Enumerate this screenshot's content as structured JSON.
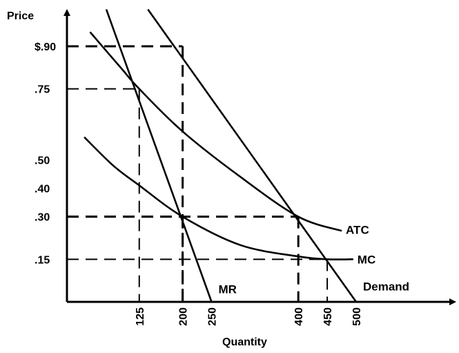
{
  "chart_data": {
    "type": "line",
    "title": "",
    "ylabel": "Price",
    "xlabel": "Quantity",
    "xlim": [
      0,
      560
    ],
    "ylim": [
      0,
      1.03
    ],
    "grid": false,
    "legend": "none",
    "x_ticks": [
      {
        "value": 125,
        "label": "125"
      },
      {
        "value": 200,
        "label": "200"
      },
      {
        "value": 250,
        "label": "250"
      },
      {
        "value": 400,
        "label": "400"
      },
      {
        "value": 450,
        "label": "450"
      },
      {
        "value": 500,
        "label": "500"
      }
    ],
    "y_ticks": [
      {
        "value": 0.9,
        "label": "$.90"
      },
      {
        "value": 0.75,
        "label": ".75"
      },
      {
        "value": 0.5,
        "label": ".50"
      },
      {
        "value": 0.4,
        "label": ".40"
      },
      {
        "value": 0.3,
        "label": ".30"
      },
      {
        "value": 0.15,
        "label": ".15"
      }
    ],
    "series": [
      {
        "name": "Demand",
        "x": [
          140,
          500
        ],
        "y": [
          1.03,
          0
        ]
      },
      {
        "name": "MR",
        "x": [
          68,
          250
        ],
        "y": [
          1.03,
          0
        ]
      },
      {
        "name": "ATC",
        "x": [
          40,
          95,
          125,
          200,
          300,
          400,
          475
        ],
        "y": [
          0.95,
          0.82,
          0.75,
          0.6,
          0.44,
          0.3,
          0.25
        ]
      },
      {
        "name": "MC",
        "x": [
          30,
          80,
          125,
          200,
          300,
          400,
          450,
          495
        ],
        "y": [
          0.58,
          0.48,
          0.41,
          0.3,
          0.2,
          0.16,
          0.15,
          0.15
        ]
      }
    ],
    "annotations": [
      {
        "series": "MR",
        "label": "MR",
        "x": 250,
        "y": 0.03
      },
      {
        "series": "ATC",
        "label": "ATC",
        "x": 475,
        "y": 0.24
      },
      {
        "series": "MC",
        "label": "MC",
        "x": 495,
        "y": 0.15
      },
      {
        "series": "Demand",
        "label": "Demand",
        "x": 500,
        "y": 0.04
      }
    ],
    "reference_lines": [
      {
        "x": 200,
        "y": 0.9,
        "weight": "bold"
      },
      {
        "x": 125,
        "y": 0.75,
        "weight": "normal"
      },
      {
        "x": 200,
        "y": 0.3,
        "weight": "bold"
      },
      {
        "x": 400,
        "y": 0.3,
        "weight": "bold"
      },
      {
        "x": 450,
        "y": 0.15,
        "weight": "normal"
      }
    ]
  }
}
